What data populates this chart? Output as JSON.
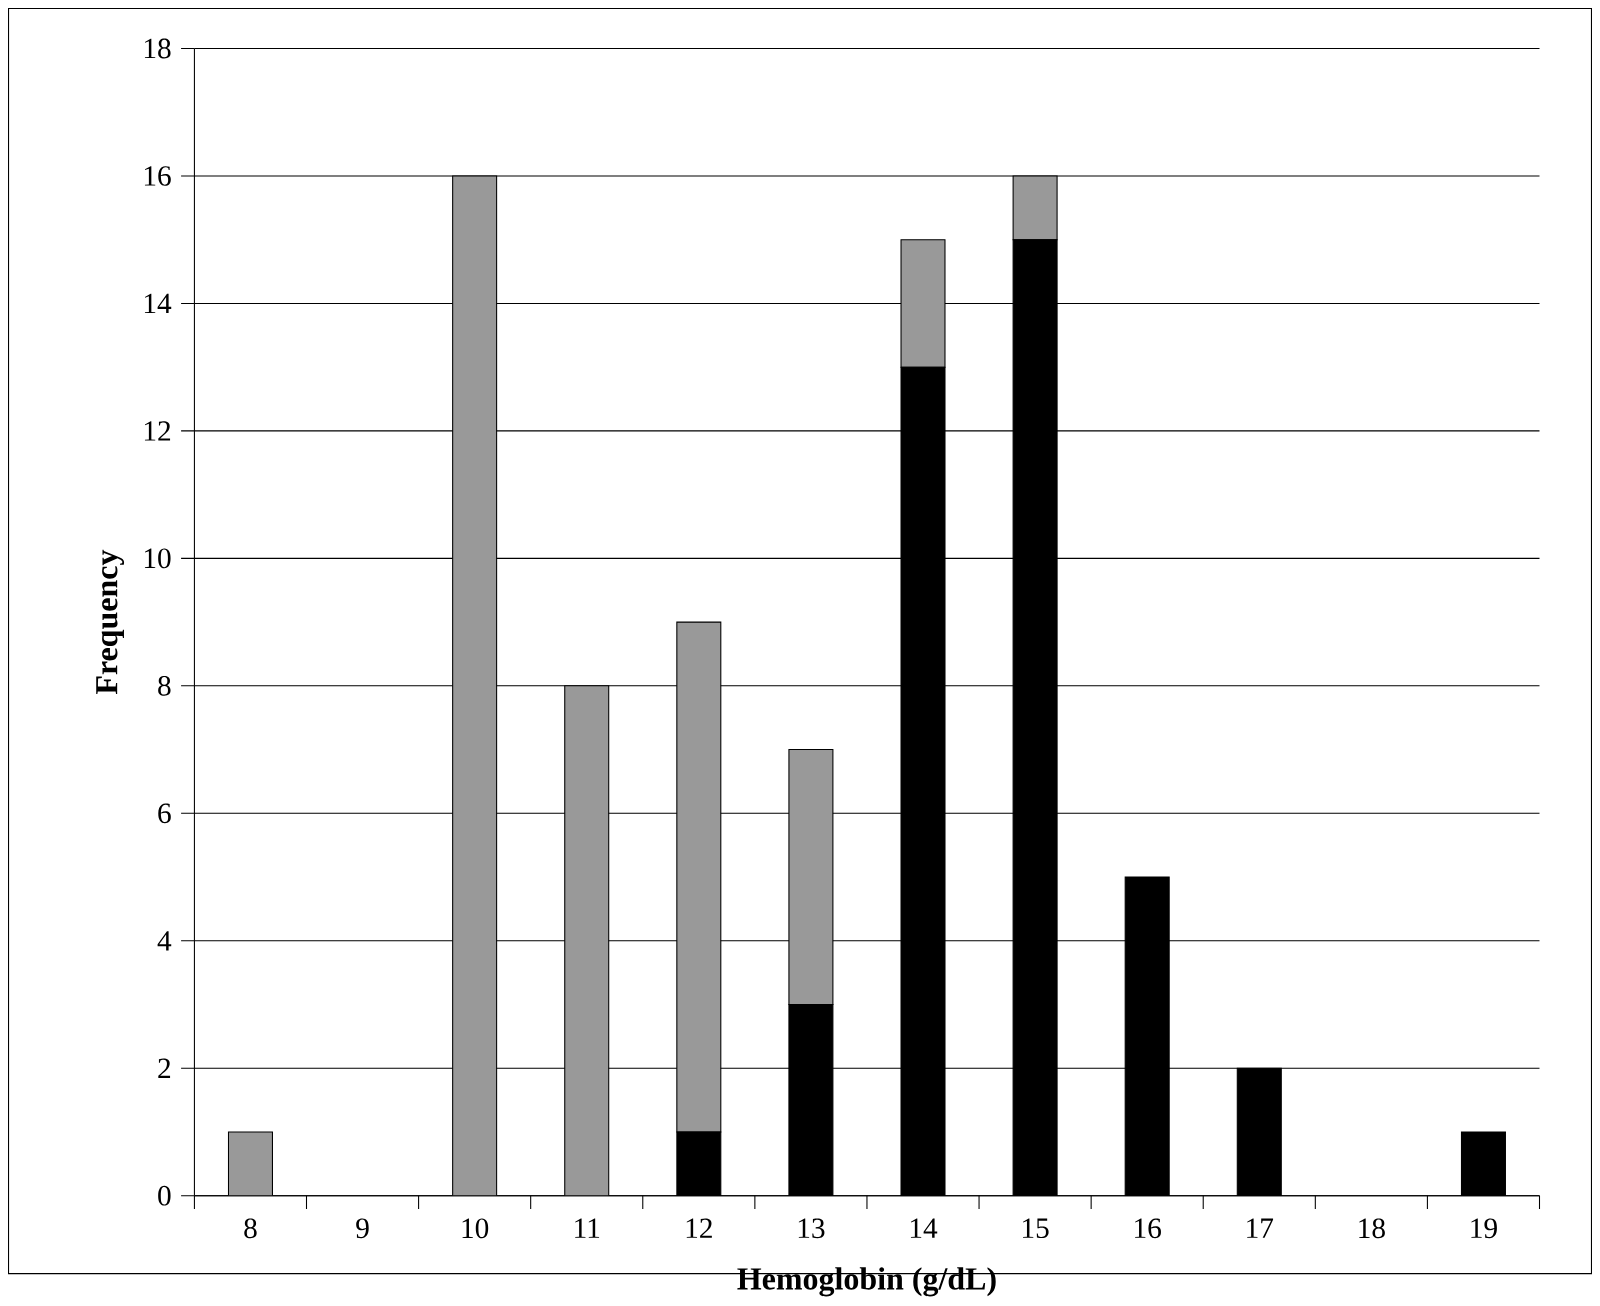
{
  "chart_data": {
    "type": "bar",
    "stacked": true,
    "xlabel": "Hemoglobin (g/dL)",
    "ylabel": "Frequency",
    "categories": [
      "8",
      "9",
      "10",
      "11",
      "12",
      "13",
      "14",
      "15",
      "16",
      "17",
      "18",
      "19"
    ],
    "series": [
      {
        "color": "#000000",
        "values": [
          0,
          0,
          0,
          0,
          1,
          3,
          13,
          15,
          5,
          2,
          0,
          1
        ]
      },
      {
        "color": "#999999",
        "values": [
          1,
          0,
          16,
          8,
          8,
          4,
          2,
          1,
          0,
          0,
          0,
          0
        ]
      }
    ],
    "ylim": [
      0,
      18
    ],
    "yticks": [
      0,
      2,
      4,
      6,
      8,
      10,
      12,
      14,
      16,
      18
    ],
    "grid": "y"
  }
}
